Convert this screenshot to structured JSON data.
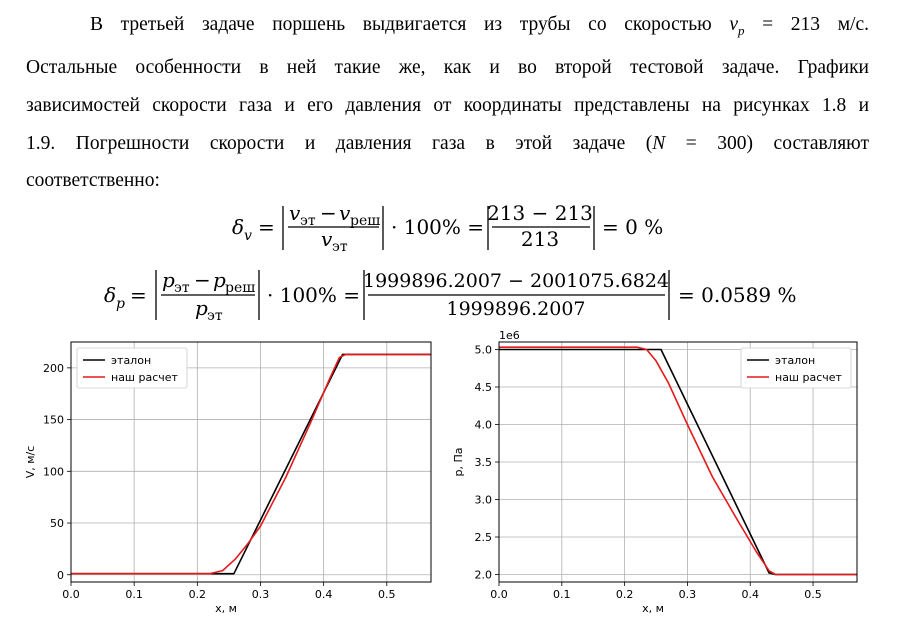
{
  "paragraph": {
    "lines": [
      "В третьей задаче поршень выдвигается из трубы со скоростью v_p = 213 м/с.",
      "Остальные особенности в ней такие же, как и во второй тестовой задаче. Графики",
      "зависимостей скорости газа и его давления от координаты представлены на рисунках 1.8 и",
      "1.9. Погрешности скорости и давления газа в этой задаче (N = 300) составляют",
      "соответственно:"
    ]
  },
  "formula_v": {
    "lhs": "δ",
    "lhs_sub": "v",
    "num": "v",
    "num_sub1": "эт",
    "minus": "−",
    "num2": "v",
    "num_sub2": "реш",
    "den": "v",
    "den_sub": "эт",
    "times": "· 100% =",
    "val_num": "213 − 213",
    "val_den": "213",
    "result": "= 0 %"
  },
  "formula_p": {
    "lhs": "δ",
    "lhs_sub": "p",
    "num": "p",
    "num_sub1": "эт",
    "minus": "−",
    "num2": "p",
    "num_sub2": "реш",
    "den": "p",
    "den_sub": "эт",
    "times": "· 100% =",
    "val_num": "1999896.2007 − 2001075.6824",
    "val_den": "1999896.2007",
    "result": "= 0.0589 %"
  },
  "chart_data": [
    {
      "type": "line",
      "xlabel": "x, м",
      "ylabel": "V, м/с",
      "xlim": [
        0.0,
        0.57
      ],
      "ylim": [
        -7,
        225
      ],
      "xticks": [
        "0.0",
        "0.1",
        "0.2",
        "0.3",
        "0.4",
        "0.5"
      ],
      "yticks": [
        "0",
        "50",
        "100",
        "150",
        "200"
      ],
      "grid": true,
      "legend_position": "top-left",
      "series": [
        {
          "name": "эталон",
          "color": "#000000",
          "x": [
            0.0,
            0.258,
            0.43,
            0.57
          ],
          "y": [
            1,
            1,
            213,
            213
          ]
        },
        {
          "name": "наш расчет",
          "color": "#e41a1c",
          "x": [
            0.0,
            0.22,
            0.24,
            0.26,
            0.28,
            0.3,
            0.34,
            0.38,
            0.41,
            0.425,
            0.435,
            0.57
          ],
          "y": [
            1,
            1,
            4,
            15,
            30,
            47,
            94,
            148,
            190,
            210,
            213,
            213
          ]
        }
      ]
    },
    {
      "type": "line",
      "xlabel": "x, м",
      "ylabel": "р, Па",
      "scale_label": "1e6",
      "xlim": [
        0.0,
        0.57
      ],
      "ylim": [
        1.9,
        5.1
      ],
      "xticks": [
        "0.0",
        "0.1",
        "0.2",
        "0.3",
        "0.4",
        "0.5"
      ],
      "yticks": [
        "2.0",
        "2.5",
        "3.0",
        "3.5",
        "4.0",
        "4.5",
        "5.0"
      ],
      "grid": true,
      "legend_position": "top-right",
      "series": [
        {
          "name": "эталон",
          "color": "#000000",
          "x": [
            0.0,
            0.258,
            0.43,
            0.44,
            0.57
          ],
          "y": [
            5.0,
            5.0,
            2.02,
            2.0,
            2.0
          ]
        },
        {
          "name": "наш расчет",
          "color": "#e41a1c",
          "x": [
            0.0,
            0.22,
            0.235,
            0.25,
            0.27,
            0.3,
            0.34,
            0.38,
            0.41,
            0.43,
            0.44,
            0.57
          ],
          "y": [
            5.03,
            5.03,
            5.0,
            4.85,
            4.55,
            4.0,
            3.3,
            2.72,
            2.3,
            2.05,
            2.0,
            2.0
          ]
        }
      ]
    }
  ]
}
